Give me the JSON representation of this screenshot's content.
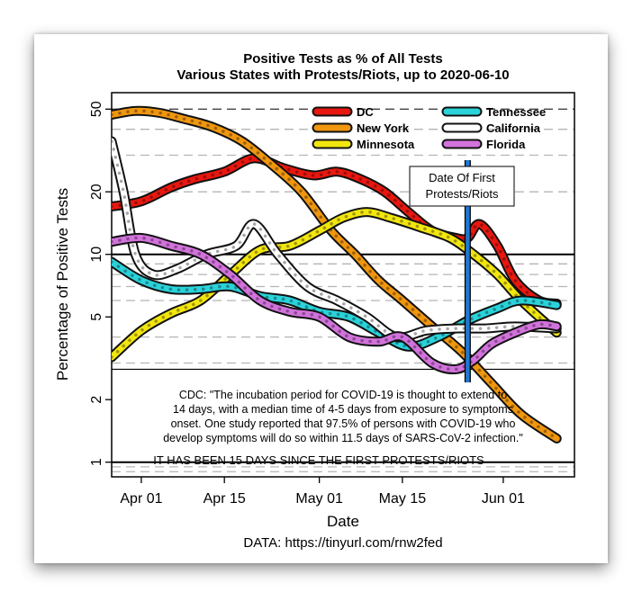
{
  "chart_data": {
    "type": "line",
    "title": "Positive Tests as % of All Tests",
    "subtitle": "Various States with Protests/Riots, up to 2020-06-10",
    "xlabel": "Date",
    "ylabel": "Percentage of Positive Tests",
    "y_scale": "log",
    "ylim": [
      0.85,
      60
    ],
    "y_ticks": [
      1,
      2,
      5,
      10,
      20,
      50
    ],
    "y_tick_labels": [
      "1",
      "2",
      "5",
      "10",
      "20",
      "50"
    ],
    "y_reference_lines": [
      1,
      10
    ],
    "y_dashed_lines": [
      3,
      4,
      6,
      7,
      8,
      9,
      20,
      30,
      40,
      50
    ],
    "xlim": [
      "2020-03-27",
      "2020-06-13"
    ],
    "x_ticks": [
      "2020-04-01",
      "2020-04-15",
      "2020-05-01",
      "2020-05-15",
      "2020-06-01"
    ],
    "x_tick_labels": [
      "Apr 01",
      "Apr 15",
      "May 01",
      "May 15",
      "Jun 01"
    ],
    "grid": false,
    "legend_position": "top-right",
    "series": [
      {
        "name": "DC",
        "color": "#e8170f",
        "x": [
          "2020-03-27",
          "2020-04-01",
          "2020-04-06",
          "2020-04-10",
          "2020-04-15",
          "2020-04-20",
          "2020-04-25",
          "2020-04-30",
          "2020-05-04",
          "2020-05-08",
          "2020-05-12",
          "2020-05-16",
          "2020-05-20",
          "2020-05-24",
          "2020-05-26",
          "2020-05-28",
          "2020-05-31",
          "2020-06-03",
          "2020-06-07",
          "2020-06-10"
        ],
        "y": [
          17,
          18,
          21,
          23,
          25,
          29,
          26,
          24,
          25,
          23,
          20,
          16,
          13,
          12,
          12,
          14,
          11,
          7.5,
          6,
          5.8
        ]
      },
      {
        "name": "New York",
        "color": "#f0960f",
        "x": [
          "2020-03-27",
          "2020-03-31",
          "2020-04-04",
          "2020-04-08",
          "2020-04-13",
          "2020-04-18",
          "2020-04-23",
          "2020-04-28",
          "2020-05-03",
          "2020-05-07",
          "2020-05-11",
          "2020-05-15",
          "2020-05-20",
          "2020-05-25",
          "2020-05-30",
          "2020-06-04",
          "2020-06-10"
        ],
        "y": [
          47,
          49,
          48,
          45,
          41,
          35,
          27,
          20,
          13,
          10,
          7.5,
          6,
          4.5,
          3.4,
          2.4,
          1.7,
          1.3
        ]
      },
      {
        "name": "Minnesota",
        "color": "#f2e60e",
        "x": [
          "2020-03-27",
          "2020-04-01",
          "2020-04-06",
          "2020-04-11",
          "2020-04-16",
          "2020-04-21",
          "2020-04-26",
          "2020-05-01",
          "2020-05-05",
          "2020-05-09",
          "2020-05-13",
          "2020-05-18",
          "2020-05-23",
          "2020-05-27",
          "2020-05-31",
          "2020-06-04",
          "2020-06-10"
        ],
        "y": [
          3.2,
          4.3,
          5.2,
          6,
          8,
          10.5,
          11,
          13,
          15,
          16,
          15,
          13.5,
          12,
          10,
          8,
          6,
          4.2
        ]
      },
      {
        "name": "Tennessee",
        "color": "#2ad2da",
        "x": [
          "2020-03-27",
          "2020-04-01",
          "2020-04-06",
          "2020-04-11",
          "2020-04-16",
          "2020-04-21",
          "2020-04-26",
          "2020-05-01",
          "2020-05-06",
          "2020-05-11",
          "2020-05-16",
          "2020-05-21",
          "2020-05-26",
          "2020-05-31",
          "2020-06-04",
          "2020-06-10"
        ],
        "y": [
          9.2,
          7.5,
          6.8,
          6.8,
          7,
          6.3,
          6,
          5.3,
          5,
          4.2,
          3.6,
          4,
          4.8,
          5.5,
          6,
          5.7
        ]
      },
      {
        "name": "California",
        "color": "#ffffff",
        "x": [
          "2020-03-27",
          "2020-03-29",
          "2020-03-31",
          "2020-04-03",
          "2020-04-07",
          "2020-04-12",
          "2020-04-17",
          "2020-04-20",
          "2020-04-24",
          "2020-04-29",
          "2020-05-04",
          "2020-05-09",
          "2020-05-14",
          "2020-05-19",
          "2020-05-24",
          "2020-05-29",
          "2020-06-03",
          "2020-06-10"
        ],
        "y": [
          35,
          20,
          10,
          8,
          8.5,
          10,
          11,
          14,
          10,
          7,
          6,
          5,
          4,
          4.3,
          4.4,
          4.4,
          4.5,
          4.4
        ]
      },
      {
        "name": "Florida",
        "color": "#d272dc",
        "x": [
          "2020-03-27",
          "2020-04-01",
          "2020-04-06",
          "2020-04-11",
          "2020-04-16",
          "2020-04-21",
          "2020-04-26",
          "2020-05-01",
          "2020-05-06",
          "2020-05-11",
          "2020-05-15",
          "2020-05-20",
          "2020-05-24",
          "2020-05-27",
          "2020-05-30",
          "2020-06-03",
          "2020-06-07",
          "2020-06-10"
        ],
        "y": [
          11.5,
          12,
          11,
          10,
          8,
          6,
          5.3,
          5,
          4,
          3.8,
          4,
          3,
          2.8,
          3.1,
          3.7,
          4.2,
          4.6,
          4.5
        ]
      }
    ],
    "annotation_box": {
      "lines": [
        "Date Of First",
        "Protests/Riots"
      ],
      "date": "2020-05-26",
      "line_color": "#1f78d2"
    },
    "note_lines": [
      "CDC: \"The incubation period for COVID-19 is thought to extend to",
      "14 days, with a median time of 4-5 days from exposure to symptoms",
      "onset. One study reported that 97.5% of persons with COVID-19 who",
      "develop symptoms will do so within 11.5 days of SARS-CoV-2 infection.\""
    ],
    "banner": "IT HAS BEEN 15 DAYS SINCE THE FIRST PROTESTS/RIOTS",
    "source": "DATA: https://tinyurl.com/rnw2fed"
  }
}
